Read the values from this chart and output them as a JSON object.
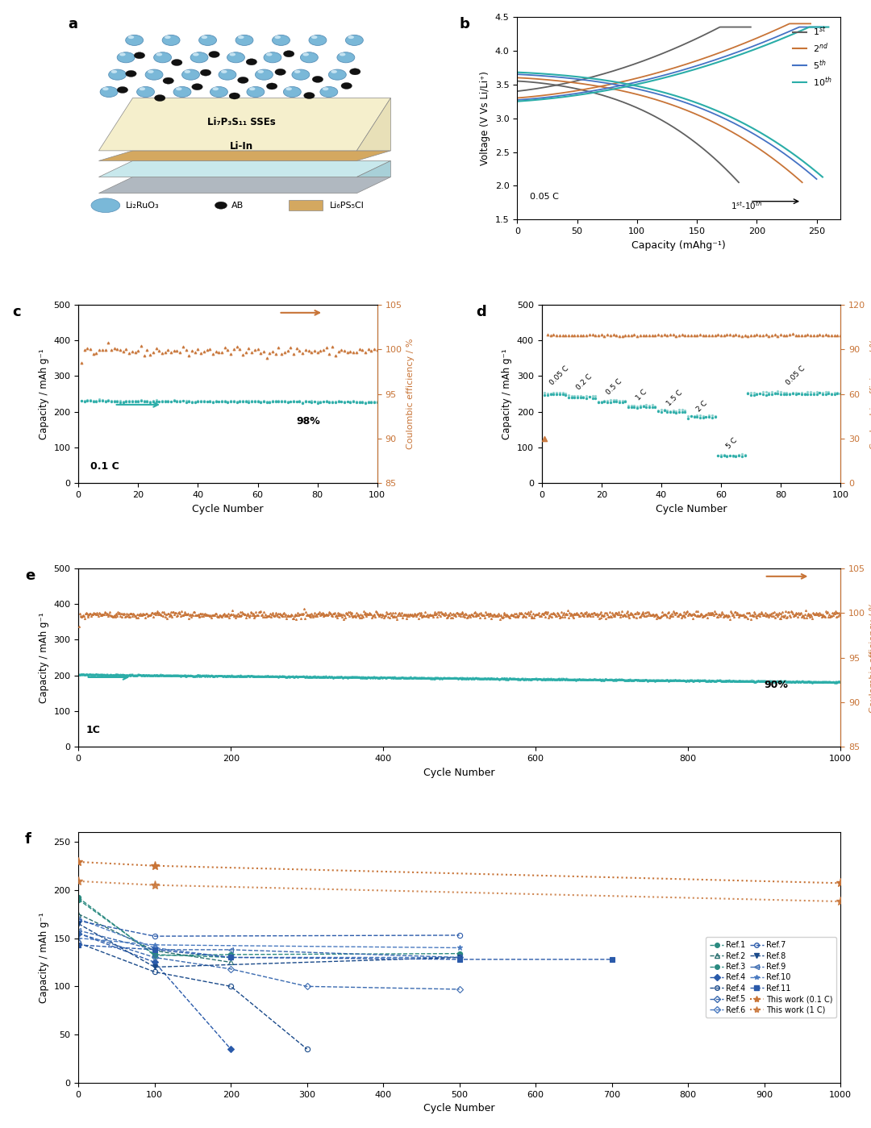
{
  "fig_bg": "#ffffff",
  "teal_color": "#2aada8",
  "orange_color": "#c87437",
  "panel_b": {
    "xlabel": "Capacity (mAhg⁻¹)",
    "ylabel": "Voltage (V Vs Li/Li⁺)",
    "xlim": [
      0,
      270
    ],
    "ylim": [
      1.5,
      4.5
    ],
    "xticks": [
      0,
      50,
      100,
      150,
      200,
      250
    ],
    "yticks": [
      1.5,
      2.0,
      2.5,
      3.0,
      3.5,
      4.0,
      4.5
    ],
    "legend_colors": [
      "#606060",
      "#c87437",
      "#4472c4",
      "#2aada8"
    ],
    "legend_labels": [
      "1st",
      "2nd",
      "5th",
      "10th"
    ]
  },
  "panel_c": {
    "xlabel": "Cycle Number",
    "ylabel": "Capacity / mAh g⁻¹",
    "ylabel2": "Coulombic efficiency / %",
    "xlim": [
      0,
      100
    ],
    "ylim": [
      0,
      500
    ],
    "ylim2": [
      85,
      105
    ],
    "yticks2": [
      85,
      90,
      95,
      100,
      105
    ],
    "annotation": "0.1 C",
    "annotation2": "98%",
    "cap_discharge": 230,
    "cap_charge": 234,
    "ce_value": 99.8
  },
  "panel_d": {
    "xlabel": "Cycle Number",
    "ylabel": "Capacity / mAh g⁻¹",
    "ylabel2": "Coulombic efficiency / %",
    "xlim": [
      0,
      100
    ],
    "ylim": [
      0,
      500
    ],
    "ylim2": [
      0,
      120
    ],
    "yticks2": [
      0,
      30,
      60,
      90,
      120
    ],
    "rate_labels": [
      "0.05 C",
      "0.2 C",
      "0.5 C",
      "1 C",
      "1.5 C",
      "2 C",
      "5 C",
      "0.05 C"
    ],
    "rate_segs": [
      [
        1,
        8
      ],
      [
        9,
        18
      ],
      [
        19,
        28
      ],
      [
        29,
        38
      ],
      [
        39,
        48
      ],
      [
        49,
        58
      ],
      [
        59,
        68
      ],
      [
        69,
        100
      ]
    ],
    "rate_cap_discharge": [
      248,
      240,
      228,
      213,
      200,
      185,
      75,
      250
    ],
    "rate_cap_charge": [
      252,
      244,
      232,
      217,
      204,
      189,
      79,
      254
    ],
    "ce_steady": 99.5,
    "ce_first": 30
  },
  "panel_e": {
    "xlabel": "Cycle Number",
    "ylabel": "Capacity / mAh g⁻¹",
    "ylabel2": "Coulombic efficiency / %",
    "xlim": [
      0,
      1000
    ],
    "ylim": [
      0,
      500
    ],
    "ylim2": [
      85,
      105
    ],
    "yticks2": [
      85,
      90,
      95,
      100,
      105
    ],
    "annotation": "1C",
    "annotation2": "90%",
    "cap_discharge": 202,
    "cap_end": 181,
    "cap_charge": 204,
    "ce_value": 99.8
  },
  "panel_f": {
    "xlabel": "Cycle Number",
    "ylabel": "Capacity / mAh g⁻¹",
    "xlim": [
      0,
      1000
    ],
    "ylim": [
      0,
      260
    ],
    "xticks": [
      0,
      100,
      200,
      300,
      400,
      500,
      600,
      700,
      800,
      900,
      1000
    ],
    "yticks": [
      0,
      50,
      100,
      150,
      200,
      250
    ]
  }
}
